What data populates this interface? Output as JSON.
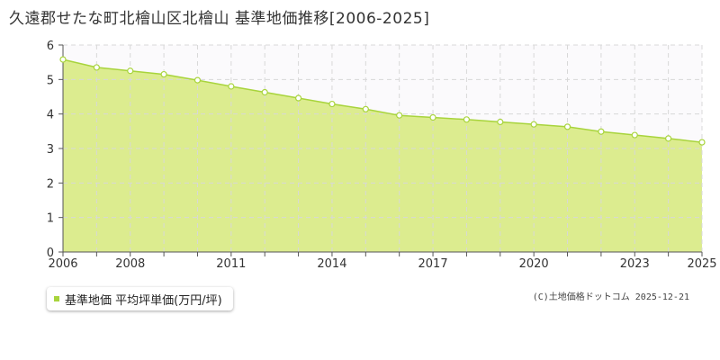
{
  "title": "久遠郡せたな町北檜山区北檜山 基準地価推移[2006-2025]",
  "credit": "(C)土地価格ドットコム 2025-12-21",
  "chart_data": {
    "type": "area",
    "x": [
      2006,
      2007,
      2008,
      2009,
      2010,
      2011,
      2012,
      2013,
      2014,
      2015,
      2016,
      2017,
      2018,
      2019,
      2020,
      2021,
      2022,
      2023,
      2024,
      2025
    ],
    "x_tick_labels": [
      "2006",
      "2008",
      "2011",
      "2014",
      "2017",
      "2020",
      "2023",
      "2025"
    ],
    "ylim": [
      0,
      6
    ],
    "y_ticks": [
      "0",
      "1",
      "2",
      "3",
      "4",
      "5",
      "6"
    ],
    "grid": true,
    "legend_position": "bottom-left",
    "series": [
      {
        "name": "基準地価 平均坪単価(万円/坪)",
        "color": "#a8d43c",
        "fill": "#dcec8f",
        "values": [
          5.58,
          5.35,
          5.25,
          5.15,
          4.98,
          4.8,
          4.63,
          4.46,
          4.29,
          4.14,
          3.96,
          3.9,
          3.84,
          3.77,
          3.7,
          3.63,
          3.49,
          3.39,
          3.29,
          3.18
        ]
      }
    ]
  }
}
